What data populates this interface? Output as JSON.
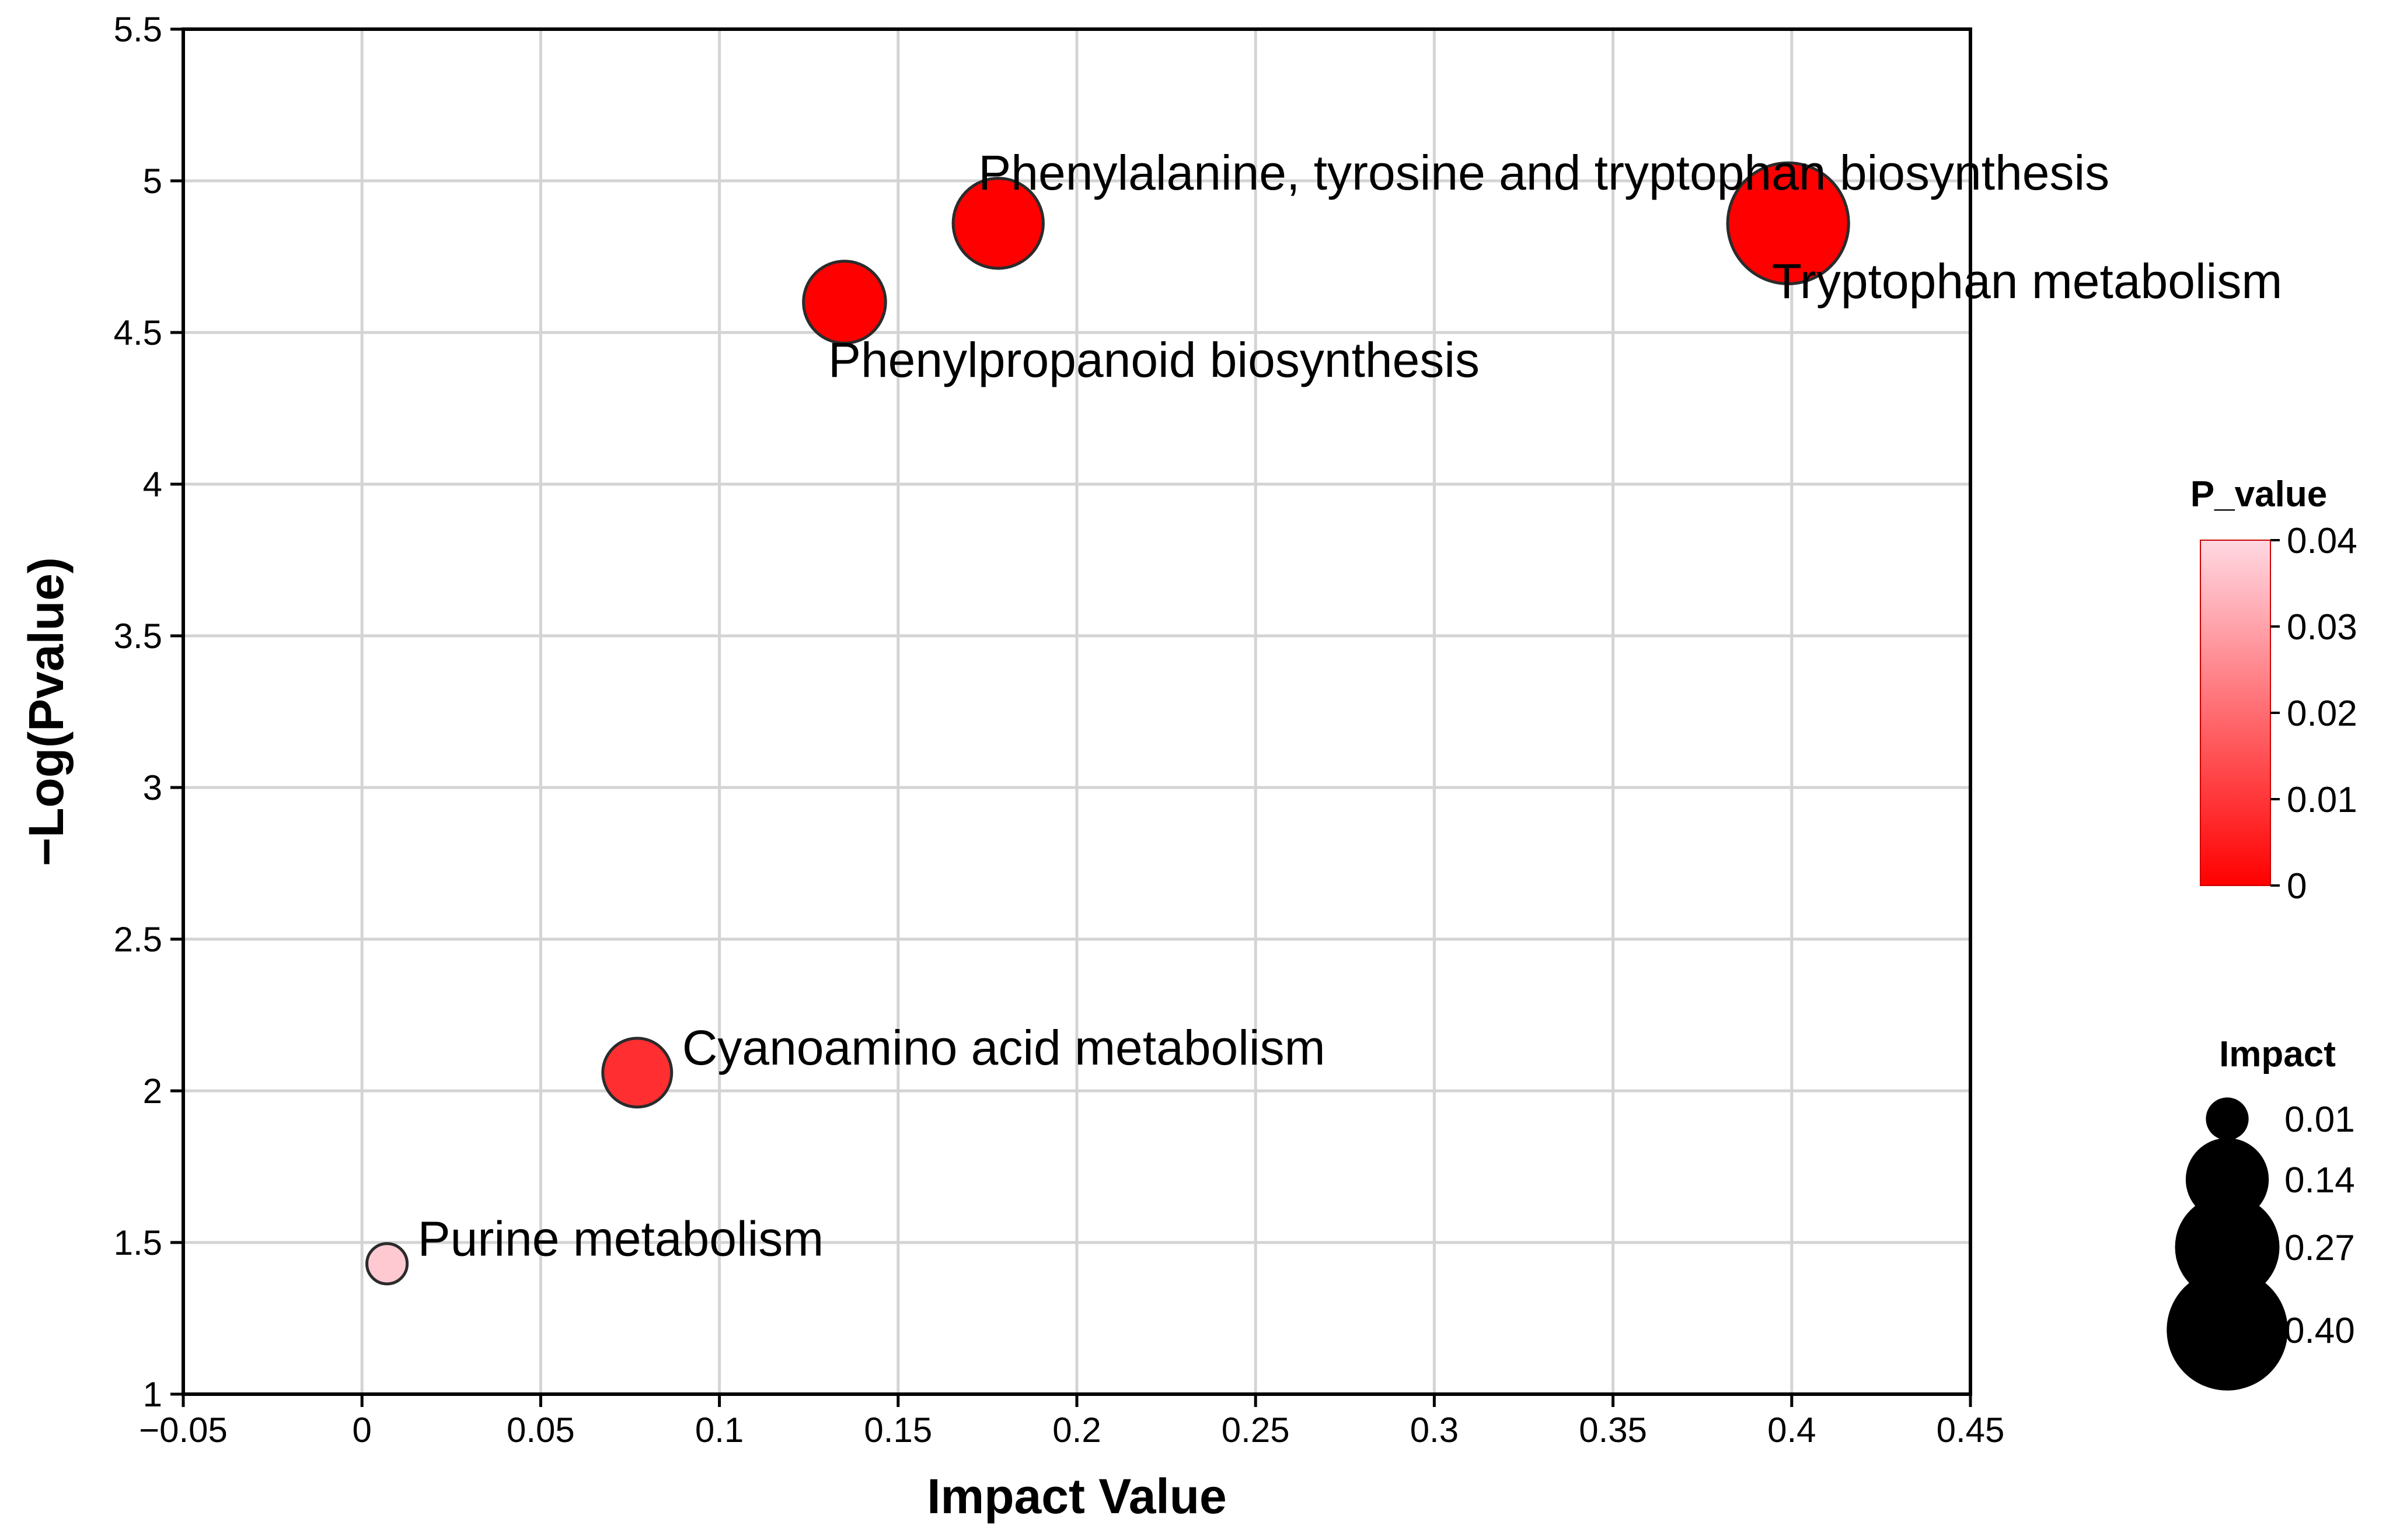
{
  "chart_data": {
    "type": "scatter",
    "title": "",
    "xlabel": "Impact Value",
    "ylabel": "−Log(Pvalue)",
    "xlim": [
      -0.05,
      0.45
    ],
    "ylim": [
      1,
      5.5
    ],
    "xticks": [
      -0.05,
      0,
      0.05,
      0.1,
      0.15,
      0.2,
      0.25,
      0.3,
      0.35,
      0.4,
      0.45
    ],
    "xtick_labels": [
      "−0.05",
      "0",
      "0.05",
      "0.1",
      "0.15",
      "0.2",
      "0.25",
      "0.3",
      "0.35",
      "0.4",
      "0.45"
    ],
    "yticks": [
      1,
      1.5,
      2,
      2.5,
      3,
      3.5,
      4,
      4.5,
      5,
      5.5
    ],
    "ytick_labels": [
      "1",
      "1.5",
      "2",
      "2.5",
      "3",
      "3.5",
      "4",
      "4.5",
      "5",
      "5.5"
    ],
    "grid": true,
    "points": [
      {
        "name": "Phenylalanine, tyrosine and tryptophan biosynthesis",
        "impact": 0.178,
        "neglogp": 4.86,
        "p_value": 1.38e-05,
        "label_position": "above-right"
      },
      {
        "name": "Tryptophan metabolism",
        "impact": 0.399,
        "neglogp": 4.86,
        "p_value": 1.38e-05,
        "label_position": "below-right"
      },
      {
        "name": "Phenylpropanoid biosynthesis",
        "impact": 0.135,
        "neglogp": 4.6,
        "p_value": 2.51e-05,
        "label_position": "below-right"
      },
      {
        "name": "Cyanoamino acid metabolism",
        "impact": 0.077,
        "neglogp": 2.06,
        "p_value": 0.0087,
        "label_position": "right"
      },
      {
        "name": "Purine metabolism",
        "impact": 0.007,
        "neglogp": 1.43,
        "p_value": 0.0372,
        "label_position": "right"
      }
    ],
    "color_legend": {
      "title": "P_value",
      "min": 0,
      "max": 0.04,
      "ticks": [
        0.04,
        0.03,
        0.02,
        0.01,
        0
      ],
      "tick_labels": [
        "0.04",
        "0.03",
        "0.02",
        "0.01",
        "0"
      ],
      "color_low": "#ff0000",
      "color_high": "#ffd8e2",
      "placement": "right"
    },
    "size_legend": {
      "title": "Impact",
      "values": [
        0.01,
        0.14,
        0.27,
        0.4
      ],
      "labels": [
        "0.01",
        "0.14",
        "0.27",
        "0.40"
      ],
      "placement": "bottom-right"
    }
  }
}
